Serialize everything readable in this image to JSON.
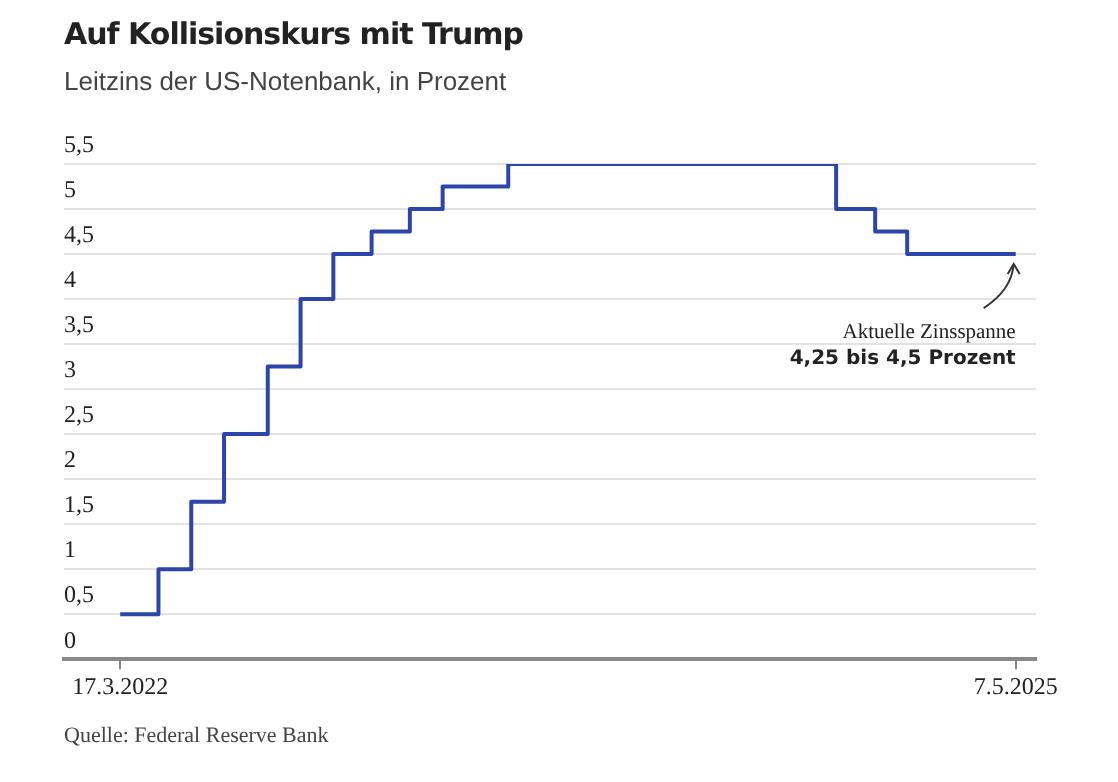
{
  "chart_data": {
    "type": "step",
    "title": "Auf Kollisionskurs mit Trump",
    "subtitle": "Leitzins der US-Notenbank, in Prozent",
    "x": [
      "2022-03-17",
      "2022-05-05",
      "2022-06-16",
      "2022-07-28",
      "2022-09-22",
      "2022-11-03",
      "2022-12-15",
      "2023-02-02",
      "2023-03-23",
      "2023-05-04",
      "2023-07-27",
      "2024-09-19",
      "2024-11-08",
      "2024-12-19",
      "2025-05-07"
    ],
    "series": [
      {
        "color": "#2b45a8",
        "values": [
          0.5,
          1,
          1.75,
          2.5,
          3.25,
          4,
          4.5,
          4.75,
          5,
          5.25,
          5.5,
          5,
          4.75,
          4.5,
          4.5
        ]
      }
    ],
    "xlim": [
      "2022-01-04",
      "2025-06-02"
    ],
    "xticks": [
      {
        "value": "2022-03-17",
        "label": "17.3.2022"
      },
      {
        "value": "2025-05-07",
        "label": "7.5.2025"
      }
    ],
    "ylim": [
      0,
      5.5
    ],
    "yticks": [
      {
        "value": 0,
        "label": "0"
      },
      {
        "value": 0.5,
        "label": "0,5"
      },
      {
        "value": 1,
        "label": "1"
      },
      {
        "value": 1.5,
        "label": "1,5"
      },
      {
        "value": 2,
        "label": "2"
      },
      {
        "value": 2.5,
        "label": "2,5"
      },
      {
        "value": 3,
        "label": "3"
      },
      {
        "value": 3.5,
        "label": "3,5"
      },
      {
        "value": 4,
        "label": "4"
      },
      {
        "value": 4.5,
        "label": "4,5"
      },
      {
        "value": 5,
        "label": "5"
      },
      {
        "value": 5.5,
        "label": "5,5"
      }
    ],
    "grid": "y",
    "legend": false,
    "marker": "none",
    "line_style": "solid",
    "annotations": [
      {
        "text": "Aktuelle Zinsspanne\n4,25 bis 4,5 Prozent",
        "x": "2025-05-07",
        "y": 4.5
      },
      "Quelle: Federal Reserve Bank"
    ]
  }
}
